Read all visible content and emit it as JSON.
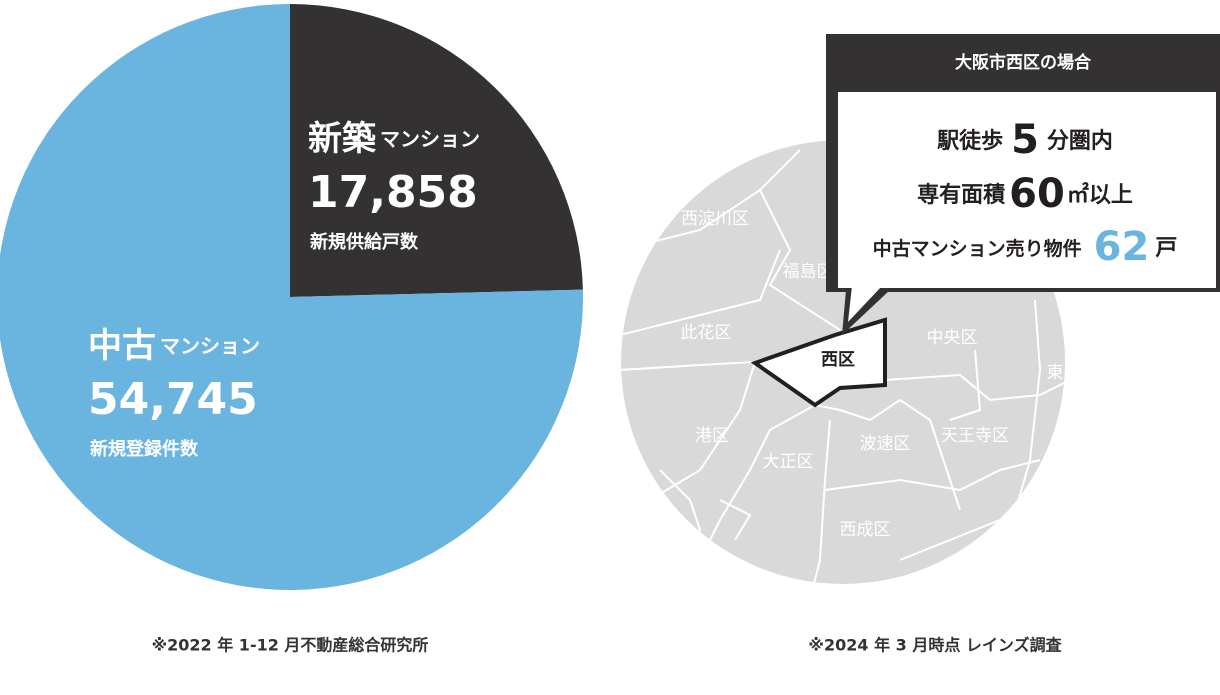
{
  "chart_data": {
    "type": "pie",
    "categories": [
      "新築",
      "中古"
    ],
    "category_suffixes": [
      "マンション",
      "マンション"
    ],
    "values": [
      17858,
      54745
    ],
    "value_labels": [
      "17,858",
      "54,745"
    ],
    "captions": [
      "新規供給戸数",
      "新規登録件数"
    ],
    "colors": [
      "#333132",
      "#6ab4e0"
    ],
    "note": "※2022 年 1-12 月不動産総合研究所"
  },
  "map": {
    "districts": [
      "西淀川区",
      "福島区",
      "此花区",
      "中央区",
      "東",
      "港区",
      "大正区",
      "波速区",
      "天王寺区",
      "西成区"
    ],
    "highlight": "西区",
    "callout": {
      "title": "大阪市西区の場合",
      "rows": [
        {
          "before": "駅徒歩",
          "number": 5,
          "after": "分圏内"
        },
        {
          "before": "専有面積",
          "number": 60,
          "after": "㎡以上"
        },
        {
          "before": "中古マンション売り物件",
          "number": 62,
          "after": "戸"
        }
      ]
    },
    "note": "※2024 年 3 月時点 レインズ調査"
  }
}
